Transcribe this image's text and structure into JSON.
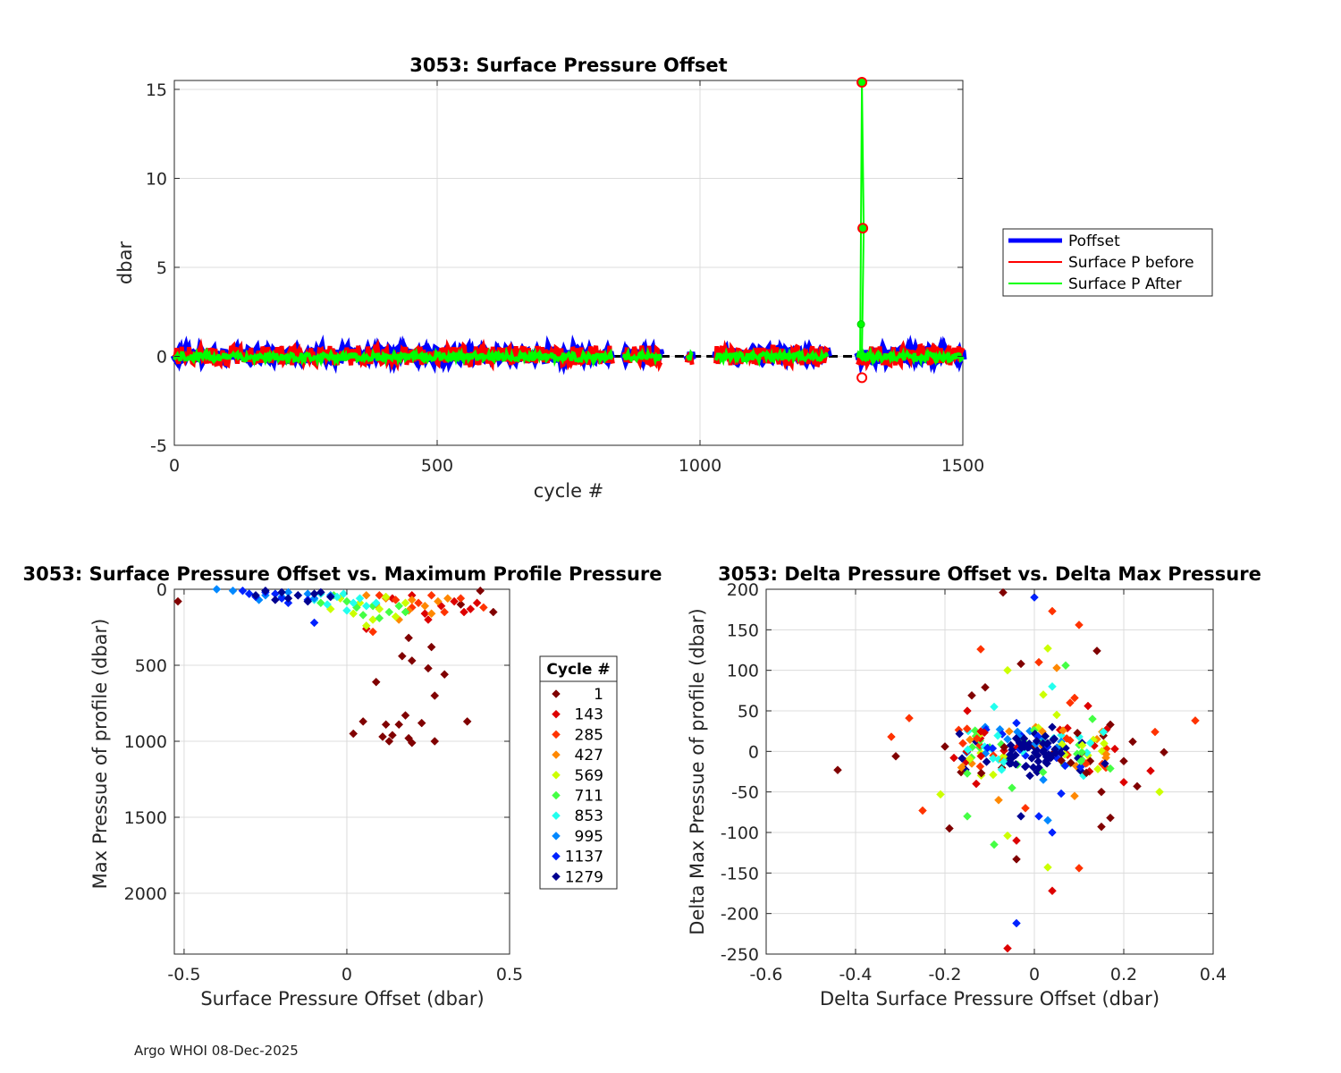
{
  "footer": "Argo WHOI 08-Dec-2025",
  "chart_data": [
    {
      "type": "line",
      "title": "3053: Surface Pressure Offset",
      "xlabel": "cycle #",
      "ylabel": "dbar",
      "xlim": [
        0,
        1500
      ],
      "ylim": [
        -5,
        15.5
      ],
      "xticks": [
        0,
        500,
        1000,
        1500
      ],
      "yticks": [
        -5,
        0,
        5,
        10,
        15
      ],
      "grid": true,
      "legend": {
        "placement": "outside-right",
        "entries": [
          {
            "label": "Poffset",
            "color": "#0000ff"
          },
          {
            "label": "Surface P before",
            "color": "#ff0000"
          },
          {
            "label": "Surface P After",
            "color": "#00ff00"
          }
        ]
      },
      "series_summary": {
        "cycle_ranges": [
          [
            0,
            835
          ],
          [
            855,
            925
          ],
          [
            975,
            985
          ],
          [
            1030,
            1245
          ],
          [
            1300,
            1500
          ]
        ],
        "gaps": [
          [
            835,
            855
          ],
          [
            925,
            975
          ],
          [
            985,
            1030
          ],
          [
            1245,
            1300
          ]
        ],
        "baseline_value": 0,
        "noise_range": [
          -0.5,
          0.6
        ],
        "spike_points": [
          {
            "cycle": 1308,
            "value": 15.4
          },
          {
            "cycle": 1309,
            "value": 7.2
          },
          {
            "cycle": 1307,
            "value": 1.8
          },
          {
            "cycle": 1308,
            "before_value": -1.2
          }
        ]
      }
    },
    {
      "type": "scatter",
      "title": "3053: Surface Pressure Offset vs. Maximum Profile Pressure",
      "xlabel": "Surface Pressure Offset (dbar)",
      "ylabel": "Max Pressue of profile (dbar)",
      "xlim": [
        -0.53,
        0.5
      ],
      "ylim": [
        0,
        2400
      ],
      "y_reversed": true,
      "xticks": [
        -0.5,
        0,
        0.5
      ],
      "yticks": [
        0,
        500,
        1000,
        1500,
        2000
      ],
      "grid": true,
      "legend": {
        "title": "Cycle #",
        "placement": "outside-right",
        "entries": [
          {
            "label": "1",
            "color": "#800000"
          },
          {
            "label": "143",
            "color": "#dd0000"
          },
          {
            "label": "285",
            "color": "#ff3300"
          },
          {
            "label": "427",
            "color": "#ff8800"
          },
          {
            "label": "569",
            "color": "#ccff00"
          },
          {
            "label": "711",
            "color": "#44ff44"
          },
          {
            "label": "853",
            "color": "#22ffee"
          },
          {
            "label": "995",
            "color": "#0088ff"
          },
          {
            "label": "1137",
            "color": "#0022ff"
          },
          {
            "label": "1279",
            "color": "#000090"
          }
        ]
      },
      "points": [
        [
          0.02,
          950,
          0
        ],
        [
          0.05,
          870,
          0
        ],
        [
          0.09,
          610,
          0
        ],
        [
          0.11,
          970,
          0
        ],
        [
          0.12,
          890,
          0
        ],
        [
          0.13,
          1000,
          0
        ],
        [
          0.14,
          960,
          0
        ],
        [
          0.16,
          890,
          0
        ],
        [
          0.18,
          830,
          0
        ],
        [
          0.19,
          980,
          0
        ],
        [
          0.2,
          1010,
          0
        ],
        [
          0.23,
          880,
          0
        ],
        [
          0.27,
          1000,
          0
        ],
        [
          0.17,
          440,
          0
        ],
        [
          0.2,
          470,
          0
        ],
        [
          0.25,
          520,
          0
        ],
        [
          0.3,
          560,
          0
        ],
        [
          0.27,
          700,
          0
        ],
        [
          0.37,
          870,
          0
        ],
        [
          0.26,
          380,
          0
        ],
        [
          0.19,
          320,
          0
        ],
        [
          0.45,
          150,
          0
        ],
        [
          0.41,
          10,
          0
        ],
        [
          -0.52,
          80,
          0
        ],
        [
          0.35,
          100,
          0
        ],
        [
          0.38,
          130,
          1
        ],
        [
          0.33,
          80,
          1
        ],
        [
          0.29,
          110,
          1
        ],
        [
          0.24,
          160,
          1
        ],
        [
          0.14,
          60,
          1
        ],
        [
          0.2,
          40,
          1
        ],
        [
          0.25,
          200,
          1
        ],
        [
          0.36,
          150,
          1
        ],
        [
          0.06,
          260,
          1
        ],
        [
          0.4,
          90,
          1
        ],
        [
          0.3,
          150,
          2
        ],
        [
          0.22,
          90,
          2
        ],
        [
          0.15,
          70,
          2
        ],
        [
          0.1,
          40,
          2
        ],
        [
          0.08,
          280,
          2
        ],
        [
          0.35,
          60,
          2
        ],
        [
          0.42,
          120,
          2
        ],
        [
          0.26,
          40,
          2
        ],
        [
          0.18,
          150,
          2
        ],
        [
          0.2,
          120,
          2
        ],
        [
          0.28,
          80,
          3
        ],
        [
          0.19,
          140,
          3
        ],
        [
          0.12,
          60,
          3
        ],
        [
          0.06,
          40,
          3
        ],
        [
          0.24,
          110,
          3
        ],
        [
          0.31,
          60,
          3
        ],
        [
          0.16,
          200,
          3
        ],
        [
          0.09,
          100,
          3
        ],
        [
          0.2,
          70,
          3
        ],
        [
          0.26,
          160,
          3
        ],
        [
          0.1,
          130,
          4
        ],
        [
          0.04,
          90,
          4
        ],
        [
          -0.02,
          60,
          4
        ],
        [
          0.15,
          180,
          4
        ],
        [
          0.08,
          200,
          4
        ],
        [
          0.18,
          90,
          4
        ],
        [
          -0.05,
          130,
          4
        ],
        [
          0.02,
          160,
          4
        ],
        [
          0.12,
          50,
          4
        ],
        [
          0.06,
          240,
          4
        ],
        [
          0.08,
          110,
          5
        ],
        [
          0.0,
          80,
          5
        ],
        [
          -0.04,
          40,
          5
        ],
        [
          0.13,
          150,
          5
        ],
        [
          0.05,
          170,
          5
        ],
        [
          0.16,
          110,
          5
        ],
        [
          -0.08,
          90,
          5
        ],
        [
          0.1,
          190,
          5
        ],
        [
          0.03,
          120,
          5
        ],
        [
          0.18,
          150,
          5
        ],
        [
          0.02,
          90,
          6
        ],
        [
          -0.03,
          50,
          6
        ],
        [
          -0.08,
          30,
          6
        ],
        [
          0.06,
          110,
          6
        ],
        [
          0.0,
          140,
          6
        ],
        [
          -0.06,
          100,
          6
        ],
        [
          0.04,
          60,
          6
        ],
        [
          -0.01,
          30,
          6
        ],
        [
          0.09,
          90,
          6
        ],
        [
          -0.1,
          70,
          6
        ],
        [
          -0.05,
          40,
          7
        ],
        [
          -0.12,
          30,
          7
        ],
        [
          -0.18,
          20,
          7
        ],
        [
          -0.25,
          40,
          7
        ],
        [
          -0.35,
          10,
          7
        ],
        [
          -0.4,
          0,
          7
        ],
        [
          -0.3,
          30,
          7
        ],
        [
          -0.1,
          60,
          7
        ],
        [
          -0.2,
          50,
          7
        ],
        [
          -0.27,
          70,
          7
        ],
        [
          -0.22,
          30,
          8
        ],
        [
          -0.28,
          50,
          8
        ],
        [
          -0.15,
          40,
          8
        ],
        [
          -0.32,
          10,
          8
        ],
        [
          -0.1,
          220,
          8
        ],
        [
          -0.2,
          60,
          8
        ],
        [
          -0.25,
          20,
          8
        ],
        [
          -0.12,
          70,
          8
        ],
        [
          -0.18,
          90,
          8
        ],
        [
          -0.3,
          30,
          8
        ],
        [
          -0.2,
          20,
          9
        ],
        [
          -0.15,
          40,
          9
        ],
        [
          -0.1,
          30,
          9
        ],
        [
          -0.25,
          10,
          9
        ],
        [
          -0.05,
          50,
          9
        ],
        [
          -0.18,
          60,
          9
        ],
        [
          -0.12,
          80,
          9
        ],
        [
          -0.28,
          40,
          9
        ],
        [
          -0.08,
          20,
          9
        ],
        [
          -0.22,
          70,
          9
        ]
      ]
    },
    {
      "type": "scatter",
      "title": "3053: Delta Pressure Offset vs. Delta Max Pressure",
      "xlabel": "Delta Surface Pressure Offset (dbar)",
      "ylabel": "Delta Max Pressue of profile (dbar)",
      "xlim": [
        -0.6,
        0.4
      ],
      "ylim": [
        -250,
        200
      ],
      "xticks": [
        -0.6,
        -0.4,
        -0.2,
        0,
        0.2,
        0.4
      ],
      "yticks": [
        -250,
        -200,
        -150,
        -100,
        -50,
        0,
        50,
        100,
        150,
        200
      ],
      "grid": true,
      "legend": "shared-with-panel-2",
      "points": [
        [
          -0.07,
          196,
          0
        ],
        [
          0.0,
          190,
          8
        ],
        [
          0.04,
          173,
          2
        ],
        [
          0.1,
          156,
          2
        ],
        [
          -0.12,
          126,
          2
        ],
        [
          0.14,
          124,
          0
        ],
        [
          0.03,
          127,
          4
        ],
        [
          0.07,
          106,
          5
        ],
        [
          -0.06,
          100,
          4
        ],
        [
          0.05,
          103,
          3
        ],
        [
          -0.03,
          108,
          0
        ],
        [
          0.01,
          110,
          2
        ],
        [
          -0.11,
          79,
          0
        ],
        [
          -0.14,
          69,
          0
        ],
        [
          -0.32,
          18,
          2
        ],
        [
          -0.28,
          41,
          2
        ],
        [
          -0.44,
          -23,
          0
        ],
        [
          -0.31,
          -6,
          0
        ],
        [
          -0.25,
          -73,
          2
        ],
        [
          -0.19,
          -95,
          0
        ],
        [
          -0.21,
          -53,
          4
        ],
        [
          -0.15,
          -80,
          5
        ],
        [
          -0.09,
          -115,
          5
        ],
        [
          -0.06,
          -104,
          4
        ],
        [
          -0.04,
          -133,
          0
        ],
        [
          -0.04,
          -110,
          1
        ],
        [
          0.03,
          -143,
          4
        ],
        [
          0.04,
          -172,
          1
        ],
        [
          -0.04,
          -212,
          8
        ],
        [
          -0.06,
          -243,
          1
        ],
        [
          0.1,
          -144,
          2
        ],
        [
          0.17,
          -82,
          0
        ],
        [
          0.15,
          -93,
          0
        ],
        [
          0.2,
          -38,
          1
        ],
        [
          0.23,
          -43,
          0
        ],
        [
          0.26,
          -24,
          1
        ],
        [
          0.28,
          -50,
          4
        ],
        [
          0.27,
          24,
          2
        ],
        [
          0.29,
          -1,
          0
        ],
        [
          0.36,
          38,
          2
        ],
        [
          0.22,
          12,
          0
        ],
        [
          0.17,
          33,
          0
        ],
        [
          0.12,
          56,
          1
        ],
        [
          0.09,
          66,
          2
        ],
        [
          0.02,
          -1,
          9
        ],
        [
          0.0,
          5,
          9
        ],
        [
          -0.02,
          -5,
          8
        ],
        [
          0.03,
          10,
          9
        ],
        [
          0.05,
          -8,
          8
        ],
        [
          -0.05,
          2,
          9
        ],
        [
          0.07,
          4,
          9
        ],
        [
          -0.03,
          20,
          8
        ],
        [
          0.01,
          -20,
          9
        ],
        [
          0.04,
          30,
          9
        ],
        [
          -0.01,
          -30,
          9
        ],
        [
          0.06,
          20,
          6
        ],
        [
          -0.06,
          15,
          7
        ],
        [
          0.08,
          -15,
          6
        ],
        [
          -0.08,
          -10,
          6
        ],
        [
          0.1,
          8,
          5
        ],
        [
          -0.1,
          5,
          5
        ],
        [
          0.12,
          -5,
          4
        ],
        [
          -0.12,
          -2,
          4
        ],
        [
          0.14,
          15,
          3
        ],
        [
          -0.14,
          -15,
          3
        ],
        [
          0.16,
          -20,
          2
        ],
        [
          -0.16,
          10,
          2
        ],
        [
          0.18,
          3,
          1
        ],
        [
          -0.18,
          -8,
          1
        ],
        [
          0.2,
          -12,
          0
        ],
        [
          -0.2,
          6,
          0
        ],
        [
          0.05,
          45,
          4
        ],
        [
          -0.05,
          -45,
          5
        ],
        [
          0.08,
          60,
          2
        ],
        [
          -0.08,
          -60,
          3
        ],
        [
          0.11,
          -30,
          6
        ],
        [
          -0.11,
          30,
          7
        ],
        [
          0.13,
          40,
          5
        ],
        [
          -0.13,
          -40,
          1
        ],
        [
          0.02,
          70,
          4
        ],
        [
          -0.02,
          -70,
          2
        ],
        [
          0.09,
          -55,
          3
        ],
        [
          -0.09,
          55,
          6
        ],
        [
          0.15,
          -50,
          0
        ],
        [
          -0.15,
          50,
          1
        ],
        [
          0.04,
          80,
          6
        ],
        [
          -0.03,
          -80,
          9
        ],
        [
          0.06,
          -52,
          8
        ],
        [
          0.01,
          -80,
          8
        ],
        [
          0.04,
          -100,
          8
        ],
        [
          0.03,
          -85,
          7
        ],
        [
          -0.01,
          25,
          7
        ],
        [
          0.02,
          -35,
          7
        ],
        [
          -0.04,
          35,
          8
        ],
        [
          0.06,
          12,
          7
        ]
      ]
    }
  ]
}
